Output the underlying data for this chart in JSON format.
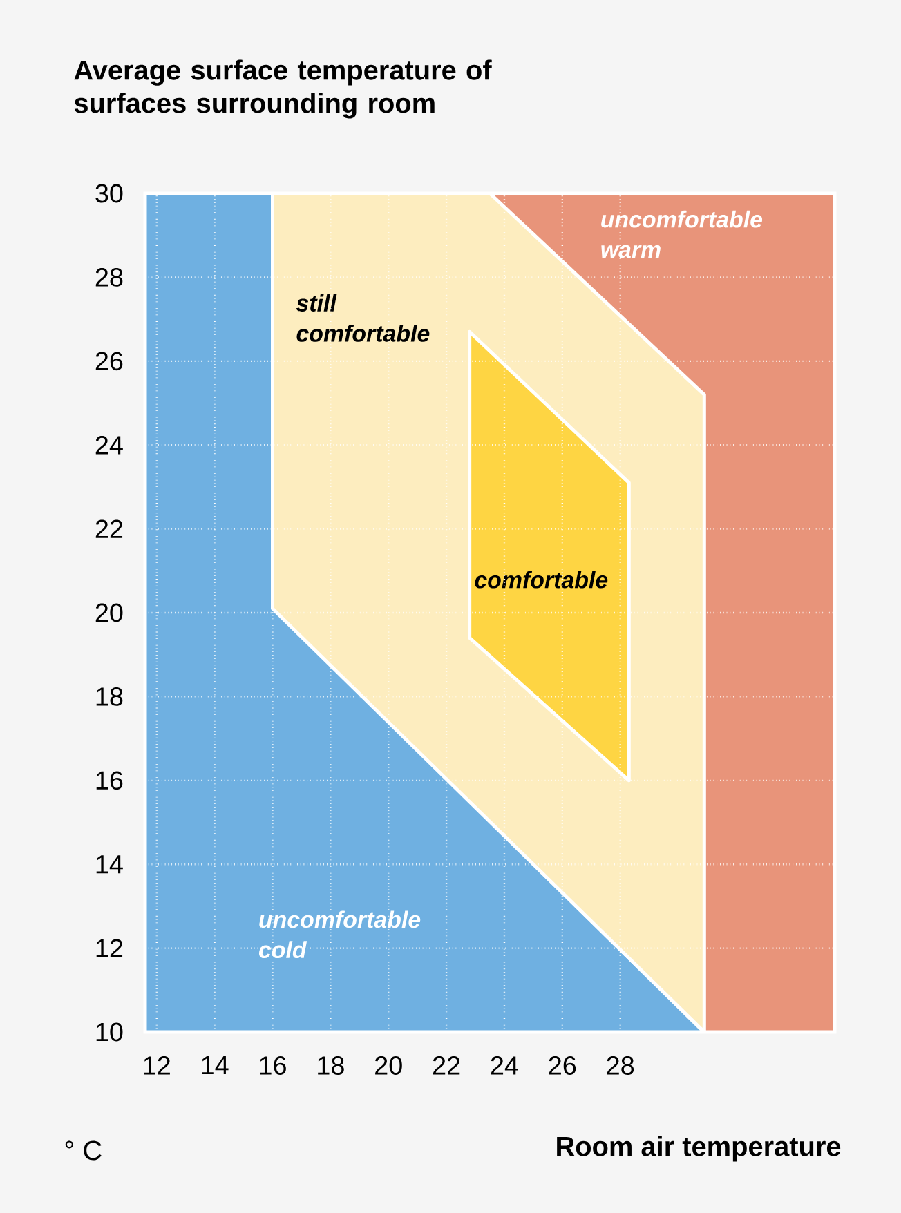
{
  "chart_data": {
    "type": "area",
    "title": "Average surface temperature of surfaces surrounding room",
    "xlabel": "Room air temperature",
    "xlim": [
      11.6,
      35.4
    ],
    "ylim": [
      10,
      30
    ],
    "xticks": [
      12,
      14,
      16,
      18,
      20,
      22,
      24,
      26,
      28
    ],
    "yticks": [
      10,
      12,
      14,
      16,
      18,
      20,
      22,
      24,
      26,
      28,
      30
    ],
    "grid": true,
    "series": [
      {
        "name": "uncomfortable cold",
        "color": "#6fb0e1",
        "x": [
          11.6,
          11.6,
          16.0,
          16.0,
          30.8
        ],
        "values": [
          10,
          30,
          30,
          20.1,
          10
        ]
      },
      {
        "name": "uncomfortable warm",
        "color": "#e8947a",
        "x": [
          23.5,
          35.4,
          35.4,
          30.9,
          30.9
        ],
        "values": [
          30,
          30,
          10,
          10,
          25.2
        ]
      },
      {
        "name": "still comfortable",
        "color": "#fdedbf",
        "x": [
          16.0,
          23.5,
          30.9,
          30.9,
          16.0
        ],
        "values": [
          30,
          30,
          25.2,
          10,
          20.1
        ]
      },
      {
        "name": "comfortable",
        "color": "#fed543",
        "x": [
          22.8,
          28.3,
          28.3,
          22.8
        ],
        "values": [
          26.7,
          23.1,
          16.0,
          19.4
        ]
      }
    ],
    "annotations": [
      "° C"
    ]
  }
}
